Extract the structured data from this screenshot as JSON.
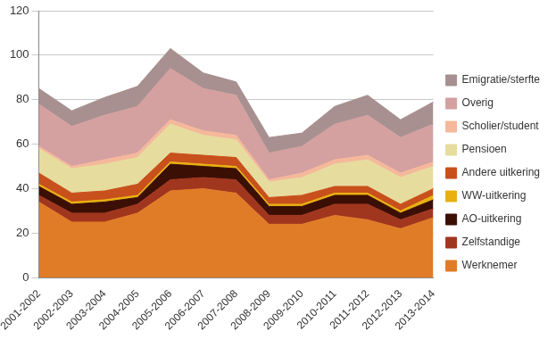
{
  "chart_data": {
    "type": "area",
    "stacked": true,
    "grid": true,
    "legend": "right",
    "categories": [
      "2001-2002",
      "2002-2003",
      "2003-2004",
      "2004-2005",
      "2005-2006",
      "2006-2007",
      "2007-2008",
      "2008-2009",
      "2009-2010",
      "2010-2011",
      "2011-2012",
      "2012-2013",
      "2013-2014"
    ],
    "ylim": [
      0,
      120
    ],
    "yticks": [
      0,
      20,
      40,
      60,
      80,
      100,
      120
    ],
    "series": [
      {
        "name": "Werknemer",
        "color": "#e07b27",
        "values": [
          34,
          25,
          25,
          29,
          39,
          40,
          38,
          24,
          24,
          28,
          26,
          22,
          27
        ]
      },
      {
        "name": "Zelfstandige",
        "color": "#a0361e",
        "values": [
          3,
          4,
          4,
          4,
          5,
          5,
          6,
          4,
          4,
          5,
          7,
          4,
          4
        ]
      },
      {
        "name": "AO-uitkering",
        "color": "#3c0f05",
        "values": [
          4,
          4,
          5,
          3,
          7,
          5,
          5,
          4,
          4,
          4,
          4,
          3,
          4
        ]
      },
      {
        "name": "WW-uitkering",
        "color": "#e8b010",
        "values": [
          1,
          1,
          1,
          1,
          1,
          1,
          1,
          1,
          1,
          1,
          1,
          1,
          2
        ]
      },
      {
        "name": "Andere uitkering",
        "color": "#c8501c",
        "values": [
          5,
          4,
          4,
          5,
          4,
          4,
          4,
          3,
          4,
          3,
          3,
          3,
          3
        ]
      },
      {
        "name": "Pensioen",
        "color": "#e6dc9e",
        "values": [
          11,
          11,
          12,
          12,
          13,
          9,
          8,
          7,
          8,
          10,
          12,
          12,
          10
        ]
      },
      {
        "name": "Scholier/student",
        "color": "#f5b89a",
        "values": [
          1,
          1,
          2,
          2,
          2,
          2,
          2,
          1,
          2,
          2,
          2,
          2,
          2
        ]
      },
      {
        "name": "Overig",
        "color": "#d4a0a0",
        "values": [
          19,
          18,
          20,
          21,
          23,
          19,
          18,
          12,
          12,
          16,
          18,
          16,
          17
        ]
      },
      {
        "name": "Emigratie/sterfte",
        "color": "#a89090",
        "values": [
          7,
          7,
          8,
          9,
          9,
          7,
          6,
          7,
          6,
          8,
          9,
          8,
          10
        ]
      }
    ]
  }
}
